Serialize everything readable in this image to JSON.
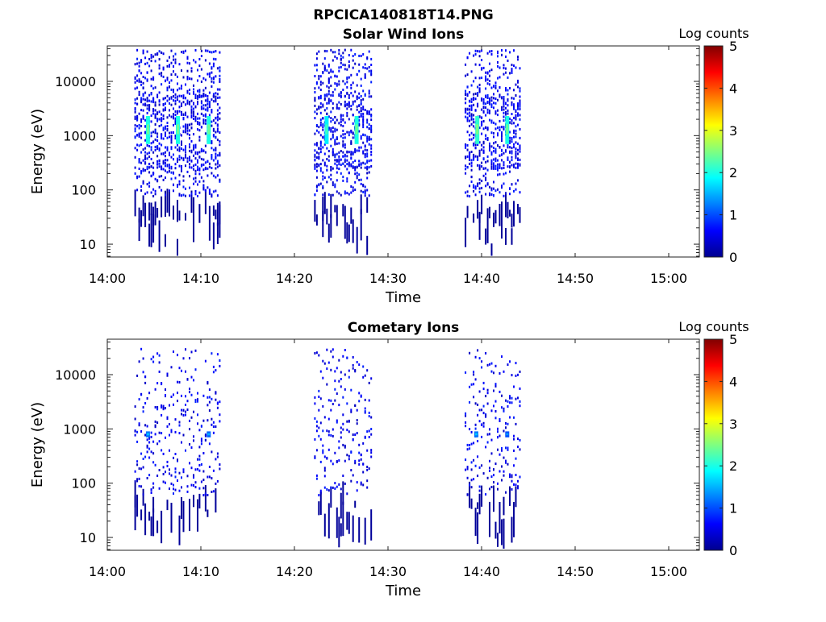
{
  "figure_title": "RPCICA140818T14.PNG",
  "colorbar": {
    "title": "Log counts",
    "ticks": [
      "0",
      "1",
      "2",
      "3",
      "4",
      "5"
    ],
    "range": [
      0,
      5
    ]
  },
  "chart_data": [
    {
      "type": "heatmap",
      "title": "Solar Wind Ions",
      "xlabel": "Time",
      "ylabel": "Energy (eV)",
      "x_ticks": [
        "14:00",
        "14:10",
        "14:20",
        "14:30",
        "14:40",
        "14:50",
        "15:00"
      ],
      "y_ticks": [
        "10",
        "100",
        "1000",
        "10000"
      ],
      "yscale": "log",
      "xlim_minutes": [
        0,
        63.5
      ],
      "ylim_eV": [
        5.8,
        45000
      ],
      "intervals": [
        [
          2.9,
          12.1
        ],
        [
          22.1,
          28.2
        ],
        [
          38.2,
          44.1
        ]
      ],
      "hot_spots": [
        {
          "t": 4.3,
          "E": [
            700,
            2300
          ],
          "level": 2.0
        },
        {
          "t": 7.5,
          "E": [
            700,
            2300
          ],
          "level": 2.0
        },
        {
          "t": 10.8,
          "E": [
            700,
            2300
          ],
          "level": 2.0
        },
        {
          "t": 23.4,
          "E": [
            700,
            2300
          ],
          "level": 1.8
        },
        {
          "t": 26.6,
          "E": [
            700,
            2300
          ],
          "level": 2.0
        },
        {
          "t": 39.5,
          "E": [
            700,
            2300
          ],
          "level": 2.1
        },
        {
          "t": 42.7,
          "E": [
            700,
            2300
          ],
          "level": 2.0
        }
      ],
      "density": "solar"
    },
    {
      "type": "heatmap",
      "title": "Cometary Ions",
      "xlabel": "Time",
      "ylabel": "Energy (eV)",
      "x_ticks": [
        "14:00",
        "14:10",
        "14:20",
        "14:30",
        "14:40",
        "14:50",
        "15:00"
      ],
      "y_ticks": [
        "10",
        "100",
        "1000",
        "10000"
      ],
      "yscale": "log",
      "xlim_minutes": [
        0,
        63.5
      ],
      "ylim_eV": [
        5.8,
        45000
      ],
      "intervals": [
        [
          2.9,
          12.1
        ],
        [
          22.1,
          28.2
        ],
        [
          38.2,
          44.1
        ]
      ],
      "hot_spots": [
        {
          "t": 4.3,
          "E": [
            700,
            900
          ],
          "level": 1.2
        },
        {
          "t": 10.8,
          "E": [
            700,
            900
          ],
          "level": 1.1
        },
        {
          "t": 39.4,
          "E": [
            700,
            900
          ],
          "level": 1.2
        },
        {
          "t": 42.7,
          "E": [
            700,
            900
          ],
          "level": 1.0
        }
      ],
      "density": "comet"
    }
  ]
}
